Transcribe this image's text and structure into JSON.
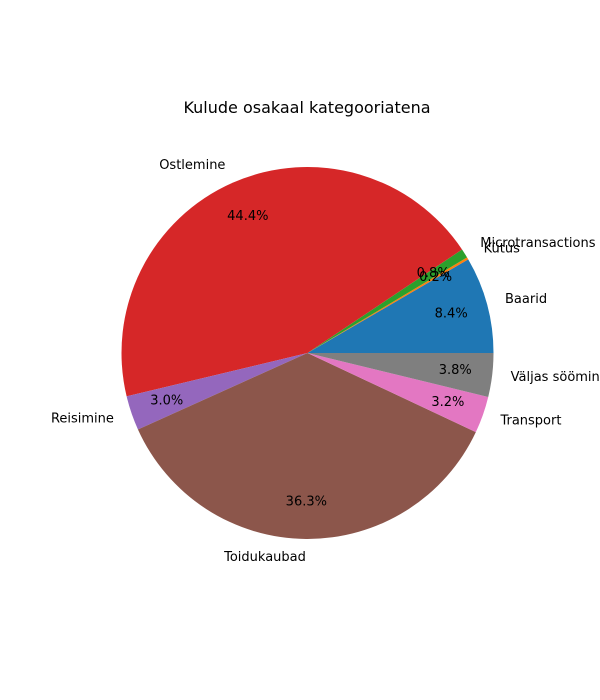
{
  "chart_data": {
    "type": "pie",
    "title": "Kulude osakaal kategooriatena",
    "start_angle_deg": 0,
    "direction": "counterclockwise",
    "slices": [
      {
        "label": "Baarid",
        "value": 8.4,
        "pct_label": "8.4%",
        "color": "#1f77b4"
      },
      {
        "label": "Kütus",
        "value": 0.2,
        "pct_label": "0.2%",
        "color": "#ff7f0e"
      },
      {
        "label": "Microtransactions",
        "value": 0.8,
        "pct_label": "0.8%",
        "color": "#2ca02c"
      },
      {
        "label": "Ostlemine",
        "value": 44.4,
        "pct_label": "44.4%",
        "color": "#d62728"
      },
      {
        "label": "Reisimine",
        "value": 3.0,
        "pct_label": "3.0%",
        "color": "#9467bd"
      },
      {
        "label": "Toidukaubad",
        "value": 36.3,
        "pct_label": "36.3%",
        "color": "#8c564b"
      },
      {
        "label": "Transport",
        "value": 3.2,
        "pct_label": "3.2%",
        "color": "#e377c2"
      },
      {
        "label": "Väljas söömine",
        "value": 3.8,
        "pct_label": "3.8%",
        "color": "#7f7f7f"
      }
    ]
  }
}
